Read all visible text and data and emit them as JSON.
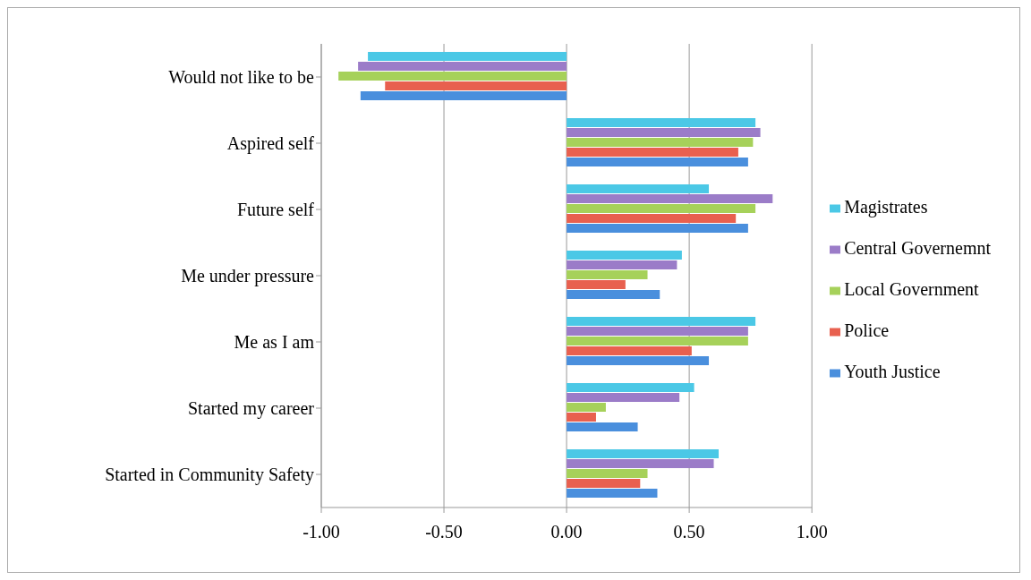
{
  "chart_data": {
    "type": "bar",
    "orientation": "horizontal",
    "categories": [
      "Would not like to be",
      "Aspired self",
      "Future self",
      "Me under pressure",
      "Me as I am",
      "Started my career",
      "Started in Community Safety"
    ],
    "series": [
      {
        "name": "Magistrates",
        "color": "#4bc8e6",
        "values": [
          -0.81,
          0.77,
          0.58,
          0.47,
          0.77,
          0.52,
          0.62
        ]
      },
      {
        "name": "Central Governemnt",
        "color": "#9b7cc8",
        "values": [
          -0.85,
          0.79,
          0.84,
          0.45,
          0.74,
          0.46,
          0.6
        ]
      },
      {
        "name": "Local Government",
        "color": "#a6d15a",
        "values": [
          -0.93,
          0.76,
          0.77,
          0.33,
          0.74,
          0.16,
          0.33
        ]
      },
      {
        "name": "Police",
        "color": "#e8604f",
        "values": [
          -0.74,
          0.7,
          0.69,
          0.24,
          0.51,
          0.12,
          0.3
        ]
      },
      {
        "name": "Youth Justice",
        "color": "#4a8fdd",
        "values": [
          -0.84,
          0.74,
          0.74,
          0.38,
          0.58,
          0.29,
          0.37
        ]
      }
    ],
    "xlim": [
      -1,
      1
    ],
    "xticks": [
      {
        "value": -1,
        "label": "-1.00"
      },
      {
        "value": -0.5,
        "label": "-0.50"
      },
      {
        "value": 0,
        "label": "0.00"
      },
      {
        "value": 0.5,
        "label": "0.50"
      },
      {
        "value": 1,
        "label": "1.00"
      }
    ],
    "grid": "x",
    "legend": "right"
  }
}
